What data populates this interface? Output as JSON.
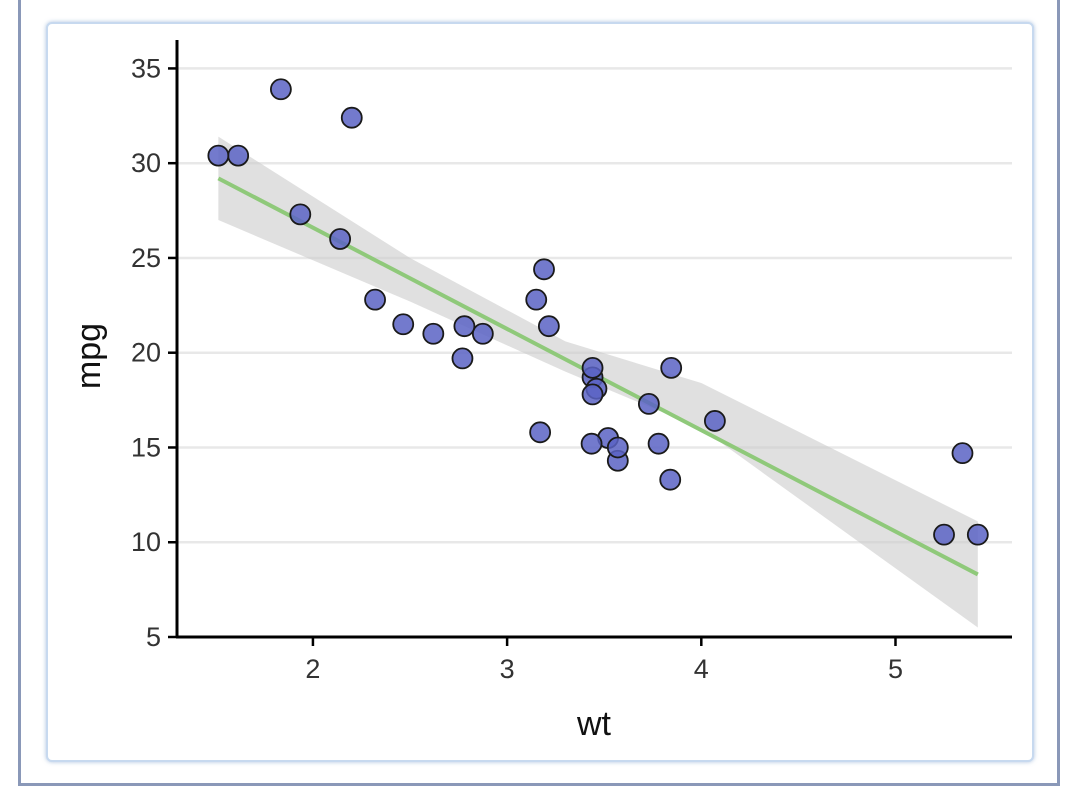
{
  "chart_data": {
    "type": "scatter",
    "xlabel": "wt",
    "ylabel": "mpg",
    "xlim": [
      1.3,
      5.6
    ],
    "ylim": [
      5,
      36.5
    ],
    "x_ticks": [
      2,
      3,
      4,
      5
    ],
    "y_ticks": [
      5,
      10,
      15,
      20,
      25,
      30,
      35
    ],
    "grid": "horizontal",
    "legend": "none",
    "point_color": "#5b63c4",
    "line_color": "#8fc97a",
    "band_color": "#cccccc",
    "points": [
      {
        "x": 2.62,
        "y": 21.0
      },
      {
        "x": 2.875,
        "y": 21.0
      },
      {
        "x": 2.32,
        "y": 22.8
      },
      {
        "x": 3.215,
        "y": 21.4
      },
      {
        "x": 3.44,
        "y": 18.7
      },
      {
        "x": 3.46,
        "y": 18.1
      },
      {
        "x": 3.57,
        "y": 14.3
      },
      {
        "x": 3.19,
        "y": 24.4
      },
      {
        "x": 3.15,
        "y": 22.8
      },
      {
        "x": 3.44,
        "y": 19.2
      },
      {
        "x": 3.44,
        "y": 17.8
      },
      {
        "x": 4.07,
        "y": 16.4
      },
      {
        "x": 3.73,
        "y": 17.3
      },
      {
        "x": 3.78,
        "y": 15.2
      },
      {
        "x": 5.25,
        "y": 10.4
      },
      {
        "x": 5.424,
        "y": 10.4
      },
      {
        "x": 5.345,
        "y": 14.7
      },
      {
        "x": 2.2,
        "y": 32.4
      },
      {
        "x": 1.615,
        "y": 30.4
      },
      {
        "x": 1.835,
        "y": 33.9
      },
      {
        "x": 2.465,
        "y": 21.5
      },
      {
        "x": 3.52,
        "y": 15.5
      },
      {
        "x": 3.435,
        "y": 15.2
      },
      {
        "x": 3.84,
        "y": 13.3
      },
      {
        "x": 3.845,
        "y": 19.2
      },
      {
        "x": 1.935,
        "y": 27.3
      },
      {
        "x": 2.14,
        "y": 26.0
      },
      {
        "x": 1.513,
        "y": 30.4
      },
      {
        "x": 3.17,
        "y": 15.8
      },
      {
        "x": 2.77,
        "y": 19.7
      },
      {
        "x": 3.57,
        "y": 15.0
      },
      {
        "x": 2.78,
        "y": 21.4
      }
    ],
    "fit_line": {
      "x": [
        1.513,
        5.424
      ],
      "y": [
        29.2,
        8.3
      ]
    },
    "confidence_band": {
      "x": [
        1.513,
        2.5,
        3.3,
        4.0,
        5.424
      ],
      "lower": [
        27.0,
        22.7,
        19.0,
        16.0,
        5.5
      ],
      "upper": [
        31.4,
        25.0,
        20.6,
        18.4,
        11.1
      ]
    }
  }
}
